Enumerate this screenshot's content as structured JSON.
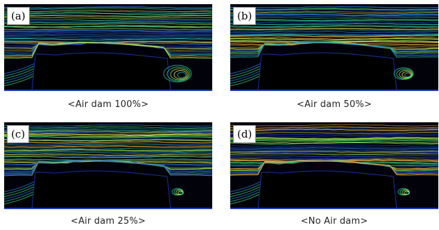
{
  "figure": {
    "panels": [
      {
        "label": "(a)",
        "caption": "<Air dam 100%>",
        "wake": "large"
      },
      {
        "label": "(b)",
        "caption": "<Air dam 50%>",
        "wake": "medium"
      },
      {
        "label": "(c)",
        "caption": "<Air dam 25%>",
        "wake": "small"
      },
      {
        "label": "(d)",
        "caption": "<No Air dam>",
        "wake": "small"
      }
    ],
    "colors": {
      "background": "#000000",
      "streamline_palette": [
        "#1f3fb8",
        "#2a76d8",
        "#23b7a8",
        "#3fd06a",
        "#9ee14a",
        "#e3e34a",
        "#f2b33d"
      ]
    }
  }
}
